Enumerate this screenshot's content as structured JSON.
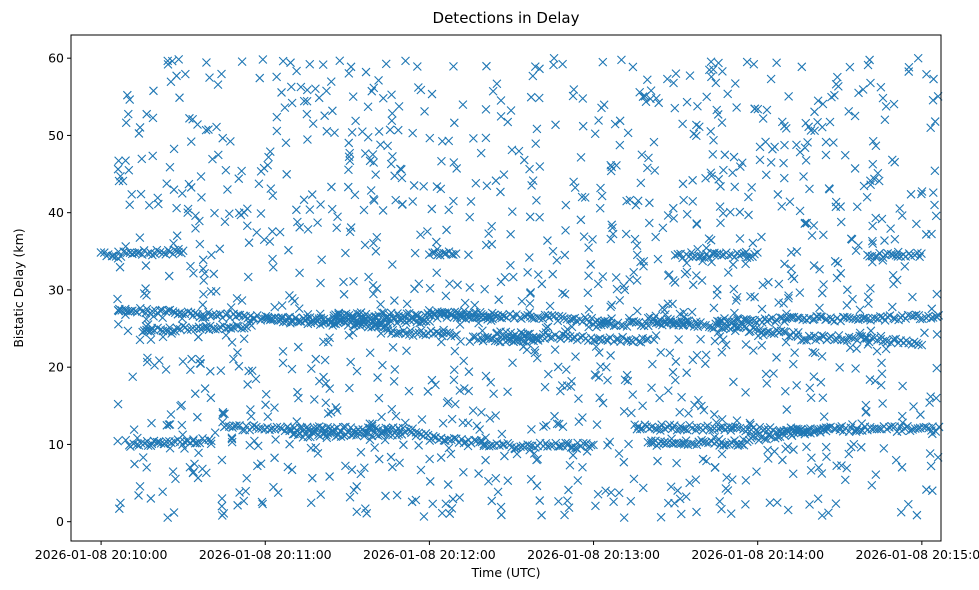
{
  "chart_data": {
    "type": "scatter",
    "title": "Detections in Delay",
    "xlabel": "Time (UTC)",
    "ylabel": "Bistatic Delay (km)",
    "marker": "x",
    "marker_color": "#1f77b4",
    "grid": false,
    "xlim": [
      "2026-01-08 20:09:49",
      "2026-01-08 20:15:07"
    ],
    "ylim": [
      -2.5,
      63
    ],
    "x_ticks": [
      "2026-01-08 20:10:00",
      "2026-01-08 20:11:00",
      "2026-01-08 20:12:00",
      "2026-01-08 20:13:00",
      "2026-01-08 20:14:00",
      "2026-01-08 20:15:00"
    ],
    "y_ticks": [
      0,
      10,
      20,
      30,
      40,
      50,
      60
    ],
    "x_range": [
      "2026-01-08 20:10:06",
      "2026-01-08 20:15:06"
    ],
    "tracks": [
      {
        "start": "2026-01-08 20:10:06",
        "end": "2026-01-08 20:11:45",
        "y_start": 27.5,
        "y_end": 25.3
      },
      {
        "start": "2026-01-08 20:10:15",
        "end": "2026-01-08 20:10:55",
        "y_start": 24.8,
        "y_end": 25.4
      },
      {
        "start": "2026-01-08 20:11:00",
        "end": "2026-01-08 20:12:00",
        "y_start": 26.2,
        "y_end": 26.0
      },
      {
        "start": "2026-01-08 20:11:25",
        "end": "2026-01-08 20:12:25",
        "y_start": 26.8,
        "y_end": 26.5
      },
      {
        "start": "2026-01-08 20:11:45",
        "end": "2026-01-08 20:12:10",
        "y_start": 24.5,
        "y_end": 24.3
      },
      {
        "start": "2026-01-08 20:12:00",
        "end": "2026-01-08 20:13:05",
        "y_start": 27.2,
        "y_end": 26.0
      },
      {
        "start": "2026-01-08 20:12:25",
        "end": "2026-01-08 20:13:20",
        "y_start": 24.3,
        "y_end": 23.4
      },
      {
        "start": "2026-01-08 20:12:15",
        "end": "2026-01-08 20:12:40",
        "y_start": 23.6,
        "y_end": 23.6
      },
      {
        "start": "2026-01-08 20:13:20",
        "end": "2026-01-08 20:14:15",
        "y_start": 26.2,
        "y_end": 24.2
      },
      {
        "start": "2026-01-08 20:13:00",
        "end": "2026-01-08 20:13:35",
        "y_start": 25.5,
        "y_end": 25.8
      },
      {
        "start": "2026-01-08 20:13:45",
        "end": "2026-01-08 20:15:06",
        "y_start": 26.0,
        "y_end": 26.5
      },
      {
        "start": "2026-01-08 20:14:15",
        "end": "2026-01-08 20:14:40",
        "y_start": 23.8,
        "y_end": 23.8
      },
      {
        "start": "2026-01-08 20:14:40",
        "end": "2026-01-08 20:15:00",
        "y_start": 23.6,
        "y_end": 23.2
      },
      {
        "start": "2026-01-08 20:10:45",
        "end": "2026-01-08 20:11:55",
        "y_start": 12.2,
        "y_end": 11.8
      },
      {
        "start": "2026-01-08 20:11:10",
        "end": "2026-01-08 20:11:50",
        "y_start": 11.2,
        "y_end": 11.5
      },
      {
        "start": "2026-01-08 20:11:55",
        "end": "2026-01-08 20:12:20",
        "y_start": 11.3,
        "y_end": 10.0
      },
      {
        "start": "2026-01-08 20:12:20",
        "end": "2026-01-08 20:13:00",
        "y_start": 9.8,
        "y_end": 9.9
      },
      {
        "start": "2026-01-08 20:13:15",
        "end": "2026-01-08 20:14:25",
        "y_start": 12.3,
        "y_end": 11.8
      },
      {
        "start": "2026-01-08 20:13:20",
        "end": "2026-01-08 20:13:55",
        "y_start": 10.2,
        "y_end": 10.2
      },
      {
        "start": "2026-01-08 20:13:55",
        "end": "2026-01-08 20:14:25",
        "y_start": 10.6,
        "y_end": 12.0
      },
      {
        "start": "2026-01-08 20:14:25",
        "end": "2026-01-08 20:15:06",
        "y_start": 12.0,
        "y_end": 12.0
      },
      {
        "start": "2026-01-08 20:10:10",
        "end": "2026-01-08 20:10:40",
        "y_start": 10.0,
        "y_end": 10.5
      },
      {
        "start": "2026-01-08 20:10:00",
        "end": "2026-01-08 20:10:30",
        "y_start": 34.5,
        "y_end": 35.0
      },
      {
        "start": "2026-01-08 20:12:00",
        "end": "2026-01-08 20:12:10",
        "y_start": 34.7,
        "y_end": 34.7
      },
      {
        "start": "2026-01-08 20:13:30",
        "end": "2026-01-08 20:14:00",
        "y_start": 34.5,
        "y_end": 34.5
      },
      {
        "start": "2026-01-08 20:14:40",
        "end": "2026-01-08 20:15:00",
        "y_start": 34.5,
        "y_end": 34.5
      }
    ],
    "background_points": {
      "count": 1300,
      "y_range": [
        0.5,
        60.0
      ],
      "seed": 7
    }
  }
}
